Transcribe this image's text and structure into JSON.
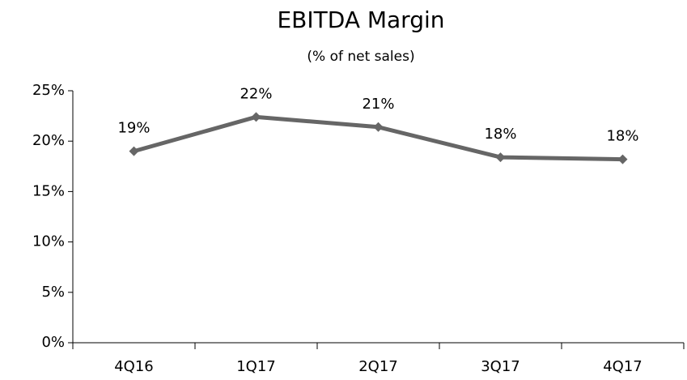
{
  "chart_data": {
    "type": "line",
    "title": "EBITDA Margin",
    "subtitle": "(% of net sales)",
    "categories": [
      "4Q16",
      "1Q17",
      "2Q17",
      "3Q17",
      "4Q17"
    ],
    "series": [
      {
        "name": "EBITDA Margin",
        "color": "#666666",
        "values": [
          19.0,
          22.4,
          21.4,
          18.4,
          18.2
        ],
        "value_labels": [
          "19%",
          "22%",
          "21%",
          "18%",
          "18%"
        ]
      }
    ],
    "ylim": [
      0,
      25
    ],
    "yticks": [
      {
        "value": 0,
        "label": "0%"
      },
      {
        "value": 5,
        "label": "5%"
      },
      {
        "value": 10,
        "label": "10%"
      },
      {
        "value": 15,
        "label": "15%"
      },
      {
        "value": 20,
        "label": "20%"
      },
      {
        "value": 25,
        "label": "25%"
      }
    ],
    "grid": false
  }
}
